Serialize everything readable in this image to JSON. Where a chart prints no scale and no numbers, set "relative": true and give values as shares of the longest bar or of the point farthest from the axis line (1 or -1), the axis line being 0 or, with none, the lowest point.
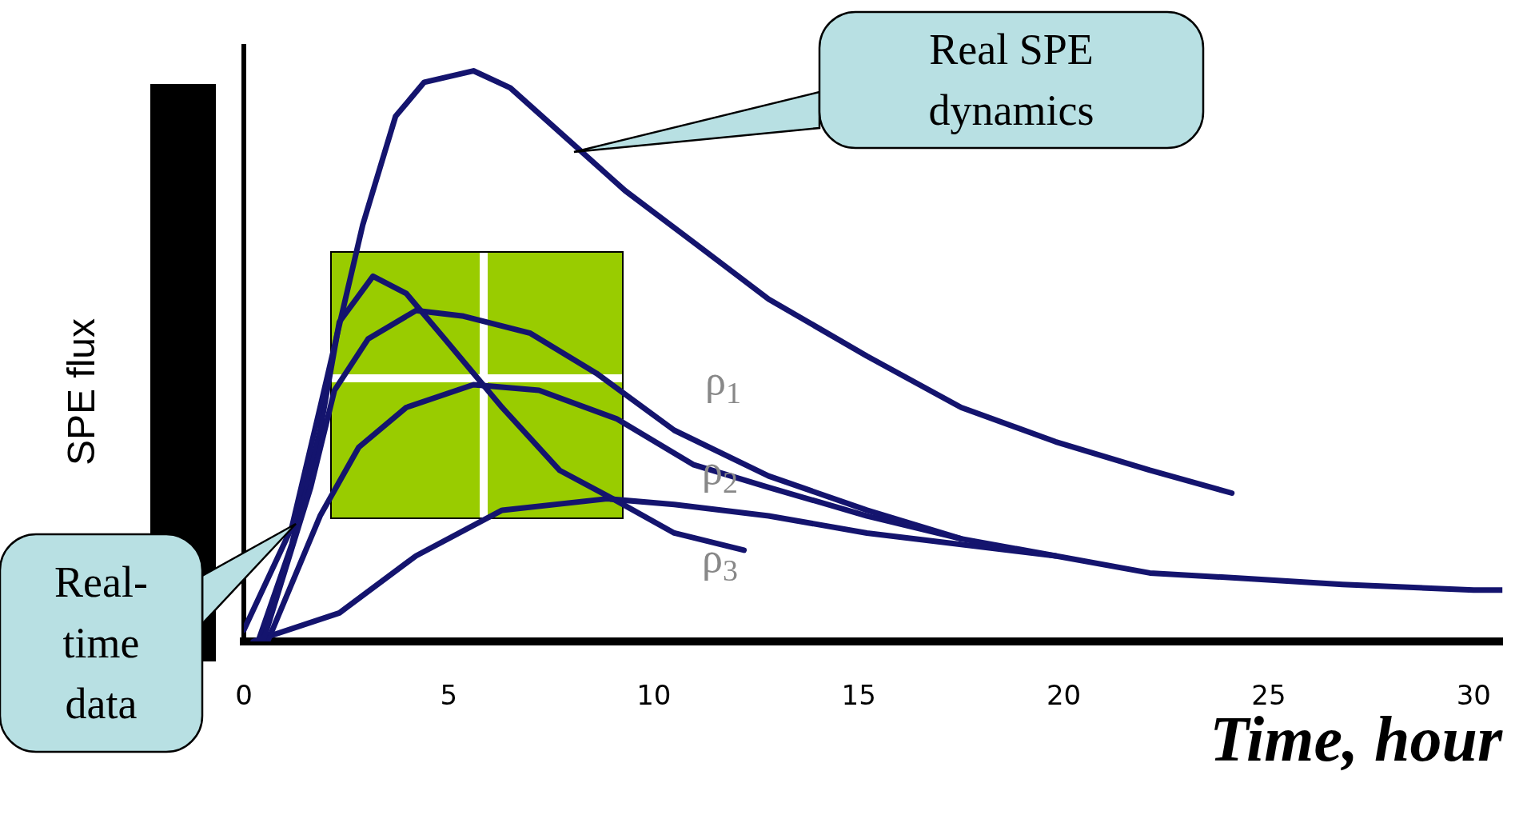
{
  "chart_data": {
    "type": "line",
    "relative": true,
    "xlabel": "Time, hour",
    "ylabel": "SPE flux",
    "xlim": [
      0,
      30.7
    ],
    "xticks": [
      0,
      5,
      10,
      15,
      20,
      25,
      30
    ],
    "tick_labels": "x",
    "grid": false,
    "legend": false,
    "marker": "none",
    "line_style": "solid",
    "series": [
      {
        "color": "#14146e",
        "x": [
          0,
          1.17,
          1.86,
          2.9,
          3.7,
          4.4,
          5.6,
          6.5,
          7.9,
          9.3,
          10.96,
          12.8,
          15.2,
          17.5,
          19.8,
          22.1,
          24.1
        ],
        "values": [
          0.02,
          0.2,
          0.41,
          0.73,
          0.92,
          0.98,
          1,
          0.97,
          0.88,
          0.79,
          0.7,
          0.6,
          0.5,
          0.41,
          0.35,
          0.3,
          0.26
        ]
      },
      {
        "name": "ρ$_{1}$",
        "color": "#14146e",
        "x": [
          0.47,
          1.63,
          2.21,
          3.03,
          4.2,
          5.36,
          6.99,
          8.6,
          10.5,
          12.8,
          15.2,
          17.5,
          19.8
        ],
        "values": [
          0,
          0.27,
          0.44,
          0.53,
          0.58,
          0.57,
          0.54,
          0.47,
          0.37,
          0.29,
          0.23,
          0.18,
          0.15
        ]
      },
      {
        "name": "ρ$_{2}$",
        "color": "#14146e",
        "x": [
          0.58,
          1.86,
          2.8,
          3.96,
          5.6,
          7.2,
          9.1,
          10.96,
          12.8,
          15.2,
          17.5
        ],
        "values": [
          0,
          0.22,
          0.34,
          0.41,
          0.45,
          0.44,
          0.39,
          0.31,
          0.27,
          0.22,
          0.18
        ]
      },
      {
        "name": "ρ$_{3}$",
        "color": "#14146e",
        "x": [
          0.35,
          1.17,
          1.86,
          2.33,
          3.15,
          3.96,
          4.9,
          6.3,
          7.7,
          9,
          10.5,
          12.2
        ],
        "values": [
          0,
          0.17,
          0.37,
          0.56,
          0.64,
          0.61,
          0.53,
          0.41,
          0.3,
          0.25,
          0.19,
          0.16
        ]
      },
      {
        "color": "#14146e",
        "x": [
          0.23,
          2.33,
          4.2,
          6.3,
          8.86,
          10.5,
          12.8,
          15.2,
          17.5,
          19.8,
          22.1,
          24.5,
          26.8,
          30,
          30.7
        ],
        "values": [
          0,
          0.05,
          0.15,
          0.23,
          0.25,
          0.24,
          0.22,
          0.19,
          0.17,
          0.15,
          0.12,
          0.11,
          0.1,
          0.09,
          0.09
        ]
      }
    ],
    "annotations": [
      "Real SPE dynamics",
      "Real-time data"
    ]
  }
}
